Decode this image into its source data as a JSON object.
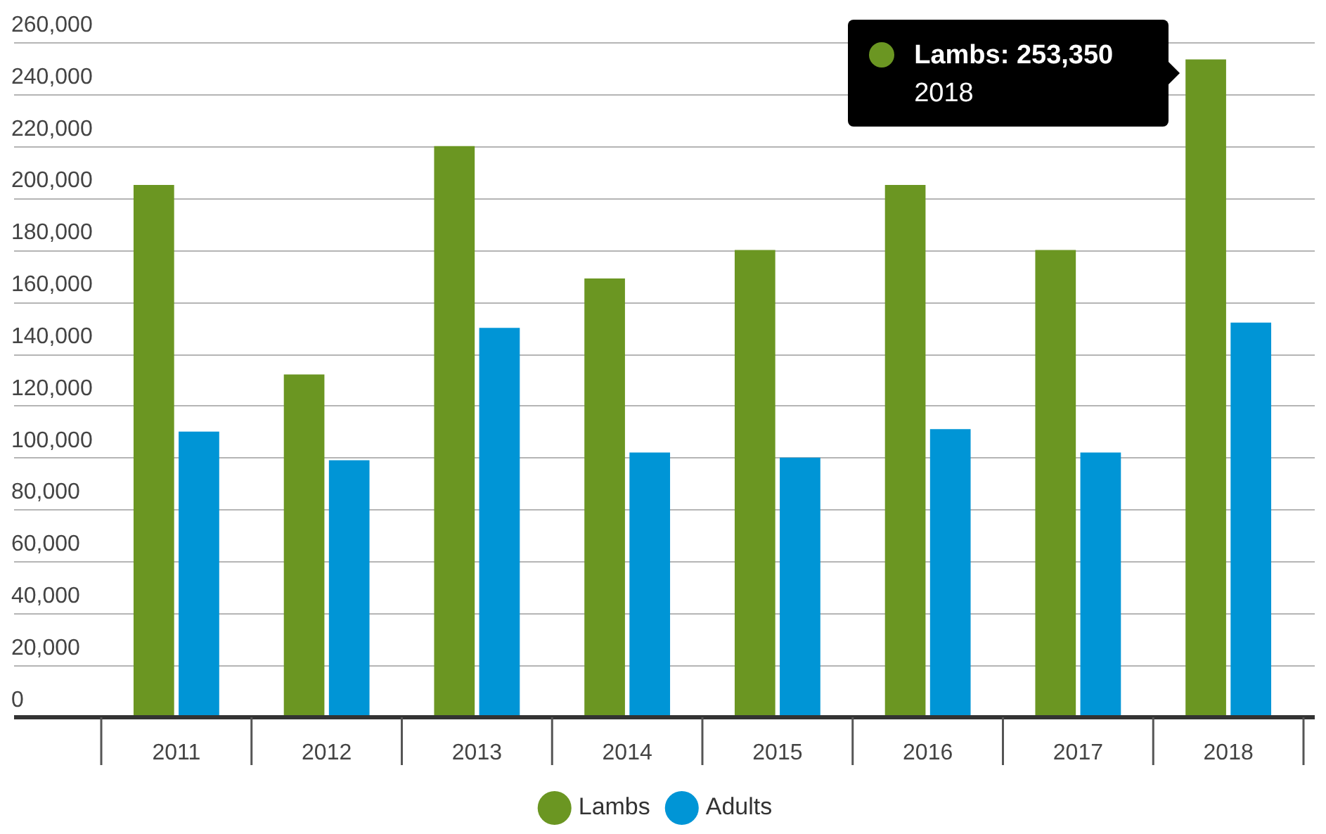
{
  "chart_data": {
    "type": "bar",
    "categories": [
      "2011",
      "2012",
      "2013",
      "2014",
      "2015",
      "2016",
      "2017",
      "2018"
    ],
    "series": [
      {
        "name": "Lambs",
        "color": "#6b9622",
        "values": [
          205000,
          132000,
          220000,
          169000,
          180000,
          205000,
          180000,
          253350
        ]
      },
      {
        "name": "Adults",
        "color": "#0095d6",
        "values": [
          110000,
          99000,
          150000,
          102000,
          100000,
          111000,
          102000,
          152000
        ]
      }
    ],
    "ylim": [
      0,
      260000
    ],
    "yticks": [
      {
        "value": 0,
        "label": "0"
      },
      {
        "value": 20000,
        "label": "20,000"
      },
      {
        "value": 40000,
        "label": "40,000"
      },
      {
        "value": 60000,
        "label": "60,000"
      },
      {
        "value": 80000,
        "label": "80,000"
      },
      {
        "value": 100000,
        "label": "100,000"
      },
      {
        "value": 120000,
        "label": "120,000"
      },
      {
        "value": 140000,
        "label": "140,000"
      },
      {
        "value": 160000,
        "label": "160,000"
      },
      {
        "value": 180000,
        "label": "180,000"
      },
      {
        "value": 200000,
        "label": "200,000"
      },
      {
        "value": 220000,
        "label": "220,000"
      },
      {
        "value": 240000,
        "label": "240,000"
      },
      {
        "value": 260000,
        "label": "260,000"
      }
    ],
    "grid": "y",
    "legend": "bottom",
    "annotations": [
      "Lambs: 253,350\n2018"
    ]
  }
}
